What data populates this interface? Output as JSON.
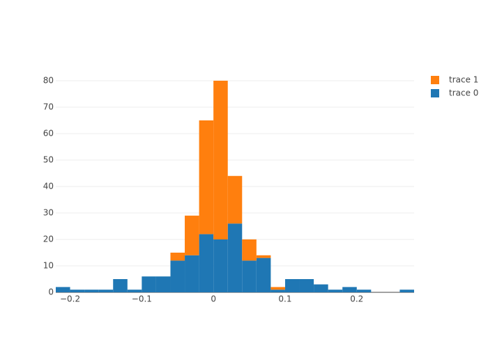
{
  "chart_data": {
    "type": "histogram",
    "barmode": "stack",
    "bins": [
      -0.22,
      -0.2,
      -0.18,
      -0.16,
      -0.14,
      -0.12,
      -0.1,
      -0.08,
      -0.06,
      -0.04,
      -0.02,
      0,
      0.02,
      0.04,
      0.06,
      0.08,
      0.1,
      0.12,
      0.14,
      0.16,
      0.18,
      0.2,
      0.22,
      0.24,
      0.26,
      0.28
    ],
    "series": [
      {
        "name": "trace 0",
        "color": "#1f77b4",
        "values": [
          2,
          1,
          1,
          1,
          5,
          1,
          6,
          6,
          12,
          14,
          22,
          20,
          26,
          12,
          13,
          1,
          5,
          5,
          3,
          1,
          2,
          1,
          0,
          0,
          1
        ]
      },
      {
        "name": "trace 1",
        "color": "#ff7f0e",
        "values": [
          0,
          0,
          0,
          0,
          0,
          0,
          0,
          0,
          3,
          15,
          43,
          60,
          18,
          8,
          1,
          1,
          0,
          0,
          0,
          0,
          0,
          0,
          0,
          0,
          0
        ]
      }
    ],
    "xlim": [
      -0.22,
      0.28
    ],
    "xticks": [
      {
        "value": -0.2,
        "label": "−0.2"
      },
      {
        "value": -0.1,
        "label": "−0.1"
      },
      0,
      0.1,
      0.2
    ],
    "ylim": [
      0,
      84.2
    ],
    "yticks": [
      0,
      10,
      20,
      30,
      40,
      50,
      60,
      70,
      80
    ],
    "grid": true
  }
}
